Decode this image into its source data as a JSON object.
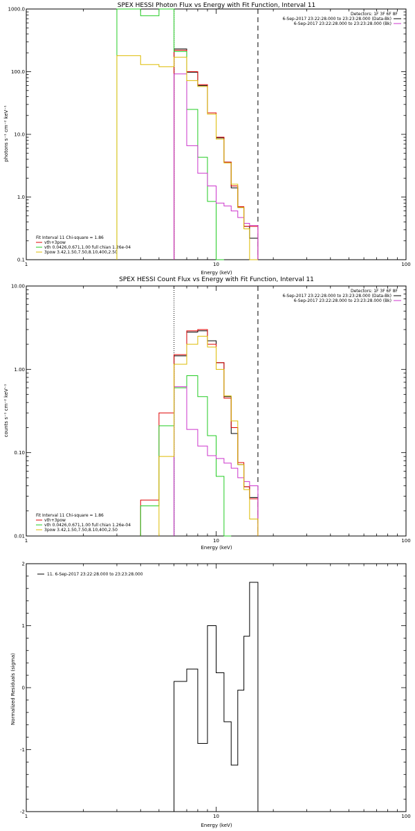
{
  "colors": {
    "black": "#000000",
    "red": "#dd0000",
    "green": "#22cc22",
    "magenta": "#cc33cc",
    "yellow": "#ddbb00"
  },
  "chart_data": [
    {
      "type": "line",
      "title": "SPEX HESSI Photon Flux vs Energy with Fit Function, Interval 11",
      "xlabel": "Energy (keV)",
      "ylabel": "photons s⁻¹ cm⁻² keV⁻¹",
      "xscale": "log",
      "yscale": "log",
      "xlim": [
        1,
        100
      ],
      "ylim": [
        0.1,
        1000
      ],
      "xticks": [
        "1",
        "10",
        "100"
      ],
      "yticks": [
        "0.1",
        "1.0",
        "10.0",
        "100.0",
        "1000.0"
      ],
      "vlines": [
        {
          "x": 6.0,
          "style": "dotted"
        },
        {
          "x": 16.6,
          "style": "dashed"
        }
      ],
      "legend_top_right": {
        "header": "Detectors: 1F 3F 6F 8F",
        "entries": [
          "6-Sep-2017 23:22:28.000 to 23:23:28.000 (Data-Bk)",
          "6-Sep-2017 23:22:28.000 to 23:23:28.000 (Bk)"
        ]
      },
      "legend_bottom_left": {
        "header": "Fit Interval 11    Chi-square = 1.86",
        "entries": [
          "vth+3pow",
          "vth 0.0426,0.671,1.00  full chian 1.26e-04",
          "3pow 3.42,1.50,7.50,8.10,400,2.50"
        ]
      },
      "edges": [
        3.0,
        4.0,
        5.0,
        6.0,
        7.0,
        8.0,
        9.0,
        10.0,
        11.0,
        12.0,
        13.0,
        14.0,
        15.0,
        16.6
      ],
      "series": [
        {
          "color": "#000000",
          "values": [
            null,
            null,
            null,
            230,
            98,
            60,
            22,
            8.8,
            3.6,
            1.4,
            0.68,
            0.34,
            0.22
          ]
        },
        {
          "color": "#dd0000",
          "values": [
            null,
            null,
            null,
            220,
            100,
            62,
            22,
            9.0,
            3.6,
            1.5,
            0.7,
            0.34,
            0.34
          ]
        },
        {
          "color": "#22cc22",
          "values": [
            1000,
            780,
            1000,
            210,
            25,
            4.3,
            0.85,
            0.1,
            null,
            null,
            null,
            null,
            null
          ]
        },
        {
          "color": "#cc33cc",
          "values": [
            null,
            null,
            null,
            92,
            6.6,
            2.4,
            1.5,
            0.8,
            0.72,
            0.6,
            0.47,
            0.38,
            0.35
          ]
        },
        {
          "color": "#ddbb00",
          "values": [
            180,
            130,
            120,
            170,
            72,
            58,
            21,
            8.4,
            3.5,
            1.6,
            0.68,
            0.31,
            0.1
          ]
        }
      ]
    },
    {
      "type": "line",
      "title": "SPEX HESSI Count Flux vs Energy with Fit Function, Interval 11",
      "xlabel": "Energy (keV)",
      "ylabel": "counts s⁻¹ cm⁻² keV⁻¹",
      "xscale": "log",
      "yscale": "log",
      "xlim": [
        1,
        100
      ],
      "ylim": [
        0.01,
        10
      ],
      "xticks": [
        "1",
        "10",
        "100"
      ],
      "yticks": [
        "0.01",
        "0.10",
        "1.00",
        "10.00"
      ],
      "vlines": [
        {
          "x": 6.0,
          "style": "dotted"
        },
        {
          "x": 16.6,
          "style": "dashed"
        }
      ],
      "legend_top_right": {
        "header": "Detectors: 1F 3F 6F 8F",
        "entries": [
          "6-Sep-2017 23:22:28.000 to 23:23:28.000 (Data-Bk)",
          "6-Sep-2017 23:22:28.000 to 23:23:28.000 (Bk)"
        ]
      },
      "legend_bottom_left": {
        "header": "Fit Interval 11    Chi-square = 1.86",
        "entries": [
          "vth+3pow",
          "vth 0.0426,0.671,1.00  full chian 1.26e-04",
          "3pow 3.42,1.50,7.50,8.10,400,2.50"
        ]
      },
      "edges": [
        4.0,
        5.0,
        6.0,
        7.0,
        8.0,
        9.0,
        10.0,
        11.0,
        12.0,
        13.0,
        14.0,
        15.0,
        16.6
      ],
      "series": [
        {
          "color": "#000000",
          "values": [
            null,
            null,
            1.45,
            2.8,
            2.9,
            2.2,
            1.2,
            0.47,
            0.17,
            0.072,
            0.039,
            0.029
          ]
        },
        {
          "color": "#dd0000",
          "values": [
            0.027,
            0.3,
            1.5,
            2.9,
            3.0,
            2.0,
            1.2,
            0.45,
            0.2,
            0.076,
            0.039,
            0.028
          ]
        },
        {
          "color": "#22cc22",
          "values": [
            0.023,
            0.21,
            0.6,
            0.84,
            0.47,
            0.16,
            0.052,
            0.01,
            null,
            null,
            null,
            null
          ]
        },
        {
          "color": "#cc33cc",
          "values": [
            null,
            null,
            0.62,
            0.19,
            0.12,
            0.092,
            0.085,
            0.075,
            0.065,
            0.05,
            0.045,
            0.04
          ]
        },
        {
          "color": "#ddbb00",
          "values": [
            null,
            0.09,
            1.15,
            2.0,
            2.5,
            1.85,
            1.0,
            0.48,
            0.24,
            0.072,
            0.036,
            0.016
          ]
        }
      ]
    },
    {
      "type": "line",
      "title": "",
      "xlabel": "Energy (keV)",
      "ylabel": "Normalized Residuals (sigma)",
      "xscale": "log",
      "yscale": "linear",
      "xlim": [
        1,
        100
      ],
      "ylim": [
        -2,
        2
      ],
      "xticks": [
        "1",
        "10",
        "100"
      ],
      "yticks": [
        "-2",
        "-1",
        "0",
        "1",
        "2"
      ],
      "legend": [
        "11.  6-Sep-2017 23:22:28.000 to 23:23:28.000"
      ],
      "edges": [
        6.0,
        7.0,
        8.0,
        9.0,
        10.0,
        11.0,
        12.0,
        13.0,
        14.0,
        15.0,
        16.6
      ],
      "series": [
        {
          "color": "#000000",
          "values": [
            0.1,
            0.3,
            -0.9,
            1.0,
            0.24,
            -0.55,
            -1.25,
            -0.04,
            0.83,
            1.7
          ]
        }
      ],
      "bottom_edge_value": -2
    }
  ]
}
